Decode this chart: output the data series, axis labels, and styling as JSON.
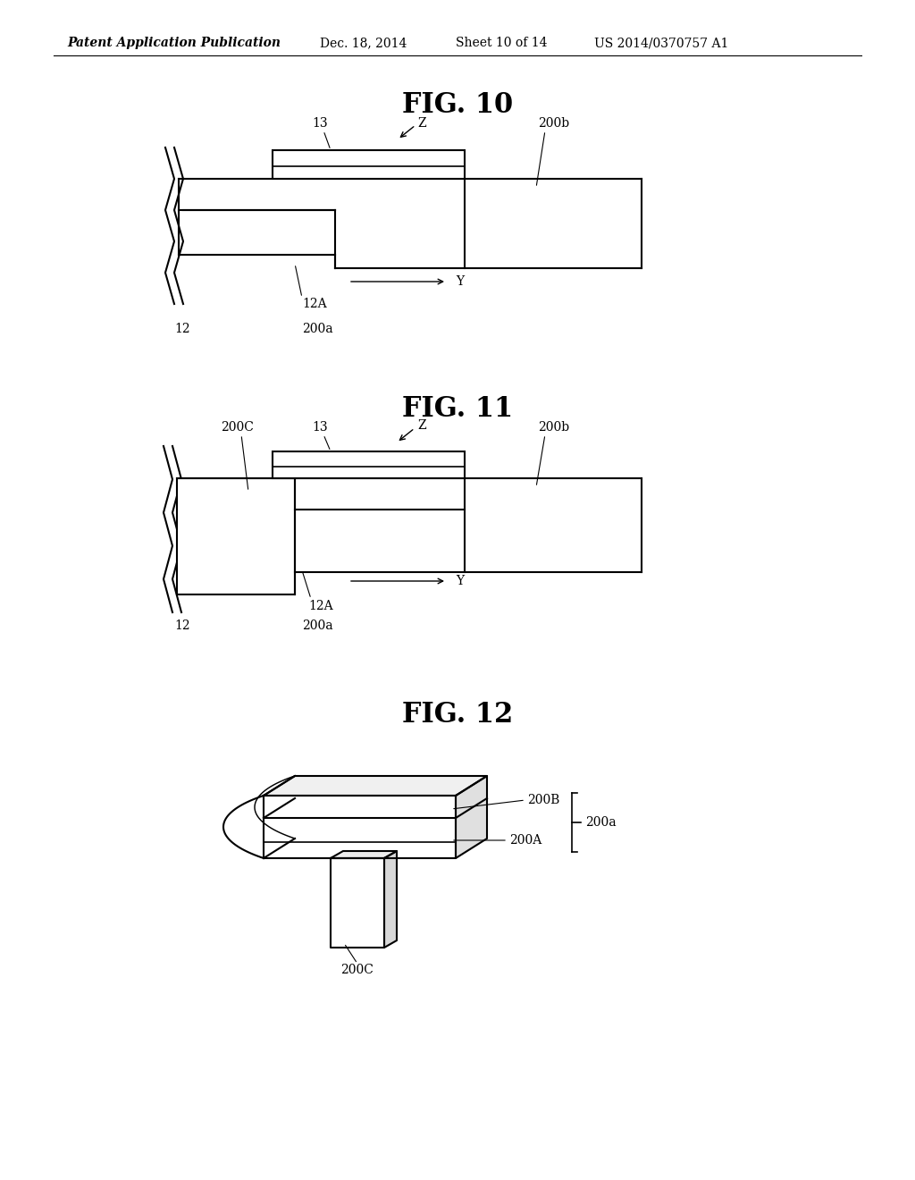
{
  "bg_color": "#ffffff",
  "header_text": "Patent Application Publication",
  "header_date": "Dec. 18, 2014",
  "header_sheet": "Sheet 10 of 14",
  "header_patent": "US 2014/0370757 A1",
  "line_color": "#000000",
  "line_width": 1.5,
  "label_fontsize": 10,
  "title_fontsize": 22,
  "header_fontsize": 10,
  "fig10_title": "FIG. 10",
  "fig11_title": "FIG. 11",
  "fig12_title": "FIG. 12"
}
